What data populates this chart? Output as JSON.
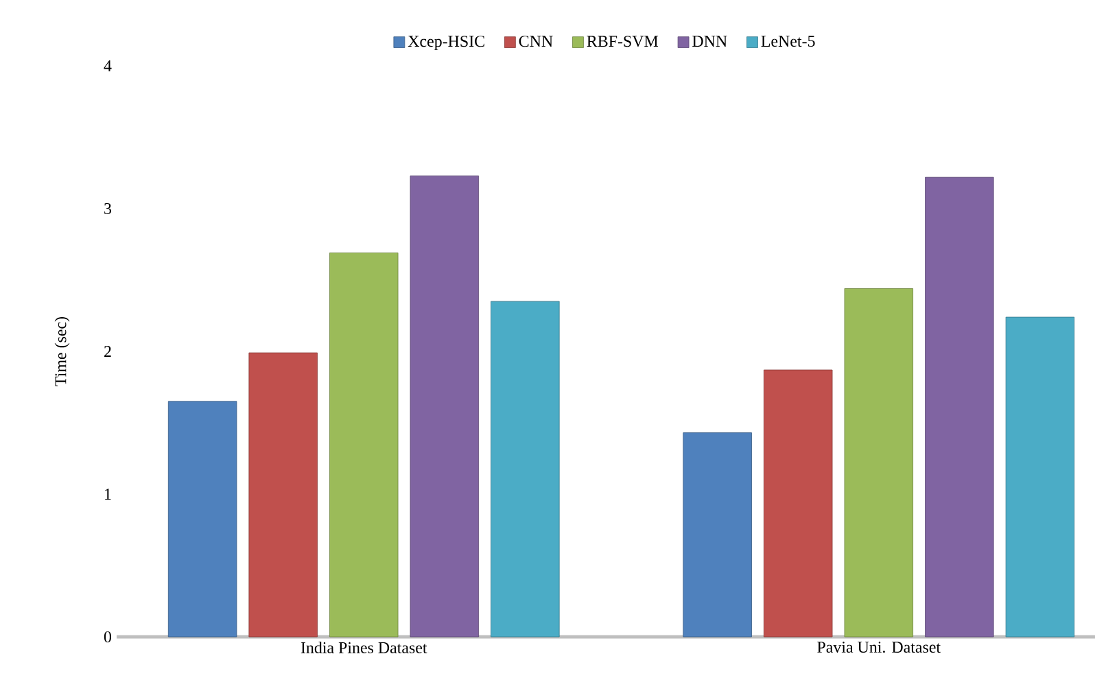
{
  "chart_data": {
    "type": "bar",
    "ylabel": "Time (sec)",
    "categories": [
      "India Pines Dataset",
      "Pavia Uni. Dataset"
    ],
    "series": [
      {
        "name": "Xcep-HSIC",
        "color": "#4f81bd",
        "values": [
          1.65,
          1.43
        ]
      },
      {
        "name": "CNN",
        "color": "#c0504d",
        "values": [
          1.99,
          1.87
        ]
      },
      {
        "name": "RBF-SVM",
        "color": "#9bbb59",
        "values": [
          2.69,
          2.44
        ]
      },
      {
        "name": "DNN",
        "color": "#8064a2",
        "values": [
          3.23,
          3.22
        ]
      },
      {
        "name": "LeNet-5",
        "color": "#4bacc6",
        "values": [
          2.35,
          2.24
        ]
      }
    ],
    "ylim": [
      0,
      4
    ],
    "yticks": [
      0,
      1,
      2,
      3,
      4
    ],
    "legend": "top"
  }
}
